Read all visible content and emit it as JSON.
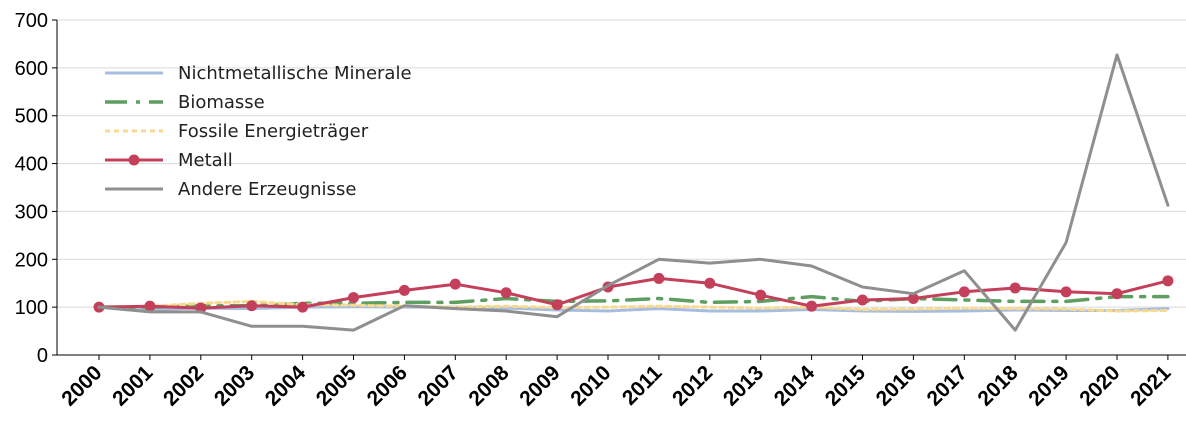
{
  "chart_data": {
    "type": "line",
    "title": "",
    "xlabel": "",
    "ylabel": "",
    "ylim": [
      0,
      700
    ],
    "yticks": [
      0,
      100,
      200,
      300,
      400,
      500,
      600,
      700
    ],
    "grid": "horizontal",
    "legend_position": "top-left",
    "x": [
      "2000",
      "2001",
      "2002",
      "2003",
      "2004",
      "2005",
      "2006",
      "2007",
      "2008",
      "2009",
      "2010",
      "2011",
      "2012",
      "2013",
      "2014",
      "2015",
      "2016",
      "2017",
      "2018",
      "2019",
      "2020",
      "2021"
    ],
    "series": [
      {
        "name": "Nichtmetallische Minerale",
        "color": "#a7bde0",
        "style": "solid",
        "values": [
          100,
          95,
          98,
          97,
          100,
          101,
          100,
          100,
          98,
          94,
          92,
          97,
          92,
          92,
          95,
          92,
          91,
          92,
          94,
          93,
          93,
          97
        ]
      },
      {
        "name": "Biomasse",
        "color": "#5e9e60",
        "style": "dashed",
        "values": [
          100,
          100,
          103,
          103,
          108,
          108,
          110,
          110,
          118,
          112,
          113,
          118,
          110,
          112,
          122,
          112,
          118,
          115,
          112,
          112,
          122,
          122
        ]
      },
      {
        "name": "Fossile Energieträger",
        "color": "#f7d98f",
        "style": "dotted",
        "values": [
          100,
          102,
          108,
          112,
          105,
          104,
          102,
          100,
          102,
          99,
          100,
          102,
          100,
          98,
          100,
          95,
          96,
          98,
          97,
          96,
          92,
          93
        ]
      },
      {
        "name": "Metall",
        "color": "#c43f5a",
        "style": "solid-markers",
        "values": [
          100,
          102,
          98,
          103,
          100,
          120,
          135,
          148,
          130,
          105,
          142,
          160,
          150,
          125,
          102,
          115,
          118,
          132,
          140,
          132,
          128,
          155
        ]
      },
      {
        "name": "Andere Erzeugnisse",
        "color": "#8f8f8f",
        "style": "solid",
        "values": [
          100,
          90,
          90,
          60,
          60,
          52,
          103,
          97,
          92,
          80,
          145,
          200,
          192,
          200,
          186,
          142,
          128,
          176,
          52,
          235,
          627,
          313
        ]
      }
    ]
  }
}
